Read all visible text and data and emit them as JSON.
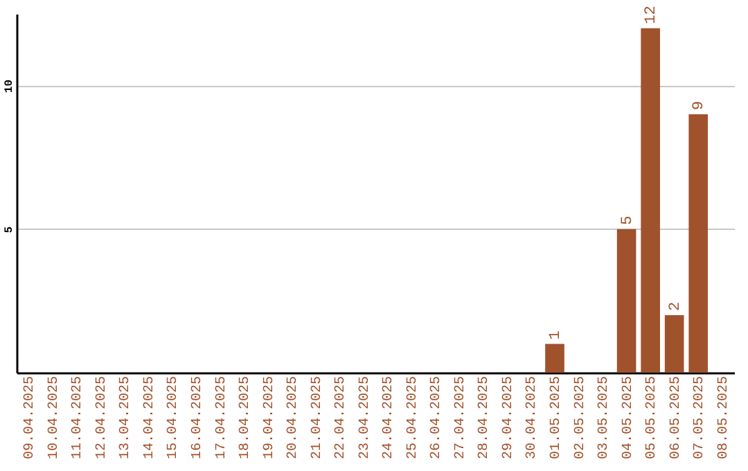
{
  "chart_data": {
    "type": "bar",
    "categories": [
      "09.04.2025",
      "10.04.2025",
      "11.04.2025",
      "12.04.2025",
      "13.04.2025",
      "14.04.2025",
      "15.04.2025",
      "16.04.2025",
      "17.04.2025",
      "18.04.2025",
      "19.04.2025",
      "20.04.2025",
      "21.04.2025",
      "22.04.2025",
      "23.04.2025",
      "24.04.2025",
      "25.04.2025",
      "26.04.2025",
      "27.04.2025",
      "28.04.2025",
      "29.04.2025",
      "30.04.2025",
      "01.05.2025",
      "02.05.2025",
      "03.05.2025",
      "04.05.2025",
      "05.05.2025",
      "06.05.2025",
      "07.05.2025",
      "08.05.2025"
    ],
    "values": [
      0,
      0,
      0,
      0,
      0,
      0,
      0,
      0,
      0,
      0,
      0,
      0,
      0,
      0,
      0,
      0,
      0,
      0,
      0,
      0,
      0,
      0,
      1,
      0,
      0,
      5,
      12,
      2,
      9,
      0
    ],
    "value_labels": [
      null,
      null,
      null,
      null,
      null,
      null,
      null,
      null,
      null,
      null,
      null,
      null,
      null,
      null,
      null,
      null,
      null,
      null,
      null,
      null,
      null,
      null,
      "1",
      null,
      null,
      "5",
      "12",
      "2",
      "9",
      null
    ],
    "color": "#a0522d",
    "ylim": [
      0,
      12.5
    ],
    "yticks": [
      5,
      10
    ],
    "grid": "y"
  }
}
